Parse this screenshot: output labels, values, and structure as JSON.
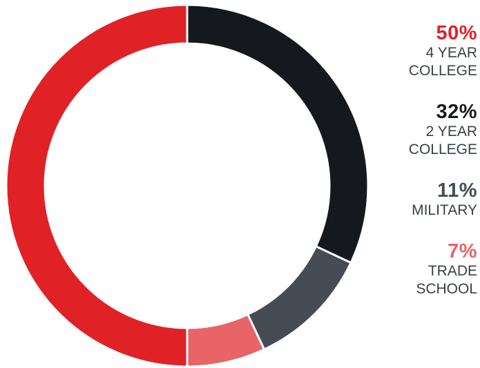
{
  "chart_data": {
    "type": "pie",
    "donut": true,
    "segments": [
      {
        "value": 32,
        "pct_label": "32%",
        "label": "2 YEAR\nCOLLEGE",
        "color": "#15181d"
      },
      {
        "value": 11,
        "pct_label": "11%",
        "label": "MILITARY",
        "color": "#474c54"
      },
      {
        "value": 7,
        "pct_label": "7%",
        "label": "TRADE\nSCHOOL",
        "color": "#e86466"
      },
      {
        "value": 50,
        "pct_label": "50%",
        "label": "4 YEAR\nCOLLEGE",
        "color": "#e02227"
      }
    ],
    "legend": [
      {
        "pct_label": "50%",
        "label": "4 YEAR\nCOLLEGE",
        "color": "#e02227"
      },
      {
        "pct_label": "32%",
        "label": "2 YEAR\nCOLLEGE",
        "color": "#15181d"
      },
      {
        "pct_label": "11%",
        "label": "MILITARY",
        "color": "#474c54"
      },
      {
        "pct_label": "7%",
        "label": "TRADE\nSCHOOL",
        "color": "#e86466"
      }
    ],
    "legend_position": "right"
  }
}
